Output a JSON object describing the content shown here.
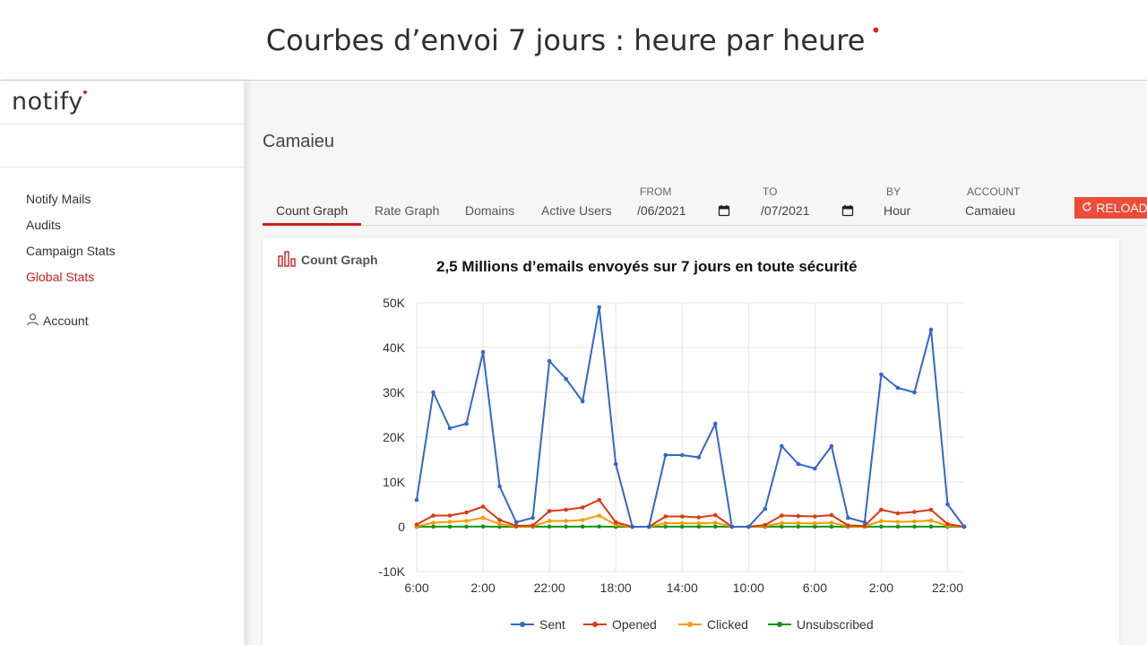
{
  "slide": {
    "title": "Courbes d’envoi 7 jours : heure par heure",
    "dot": "•"
  },
  "brand": {
    "name": "notify",
    "dot": "•",
    "accent": "#e2231a"
  },
  "sidebar": {
    "items": [
      {
        "label": "Notify Mails",
        "active": false
      },
      {
        "label": "Audits",
        "active": false
      },
      {
        "label": "Campaign Stats",
        "active": false
      },
      {
        "label": "Global Stats",
        "active": true
      }
    ],
    "account_label": "Account"
  },
  "main": {
    "heading": "Camaieu",
    "tabs": [
      {
        "label": "Count Graph",
        "active": true
      },
      {
        "label": "Rate Graph",
        "active": false
      },
      {
        "label": "Domains",
        "active": false
      },
      {
        "label": "Active Users",
        "active": false
      }
    ],
    "from": {
      "label": "FROM",
      "value": "/06/2021"
    },
    "to": {
      "label": "TO",
      "value": "/07/2021"
    },
    "by": {
      "label": "BY",
      "value": "Hour"
    },
    "account": {
      "label": "ACCOUNT",
      "value": "Camaieu"
    },
    "reload_label": "RELOAD",
    "reload_color": "#ee4b3b"
  },
  "card": {
    "title": "Count Graph",
    "headline": "2,5 Millions d’emails envoyés sur 7 jours en toute sécurité"
  },
  "chart_data": {
    "type": "line",
    "x": [
      0,
      5,
      10,
      15,
      20,
      25,
      30,
      35,
      40,
      45,
      50,
      55,
      60,
      65,
      70,
      75,
      80,
      85,
      90,
      95,
      100,
      105,
      110,
      115,
      120,
      125,
      130,
      135,
      140,
      145,
      150,
      155,
      160,
      165
    ],
    "x_tick_labels": [
      "6:00",
      "2:00",
      "22:00",
      "18:00",
      "14:00",
      "10:00",
      "6:00",
      "2:00",
      "22:00"
    ],
    "x_tick_positions": [
      0,
      20,
      40,
      60,
      80,
      100,
      120,
      140,
      160
    ],
    "ylim": [
      -10000,
      50000
    ],
    "y_tick_labels": [
      "50K",
      "40K",
      "30K",
      "20K",
      "10K",
      "0",
      "-10K"
    ],
    "y_tick_values": [
      50000,
      40000,
      30000,
      20000,
      10000,
      0,
      -10000
    ],
    "grid": true,
    "legend_position": "bottom",
    "series": [
      {
        "name": "Sent",
        "color": "#3366cc",
        "values": [
          6000,
          30000,
          22000,
          23000,
          39000,
          9000,
          1000,
          2000,
          37000,
          33000,
          28000,
          49000,
          14000,
          0,
          0,
          16000,
          16000,
          15500,
          23000,
          0,
          0,
          4000,
          18000,
          14000,
          13000,
          18000,
          2000,
          1000,
          34000,
          31000,
          30000,
          44000,
          5000,
          0
        ]
      },
      {
        "name": "Opened",
        "color": "#dc3912",
        "values": [
          500,
          2500,
          2500,
          3200,
          4500,
          1500,
          200,
          300,
          3500,
          3800,
          4300,
          6000,
          1000,
          0,
          0,
          2300,
          2300,
          2100,
          2600,
          0,
          0,
          400,
          2500,
          2400,
          2300,
          2600,
          300,
          200,
          3800,
          3000,
          3300,
          3800,
          600,
          0
        ]
      },
      {
        "name": "Clicked",
        "color": "#ff9900",
        "values": [
          100,
          900,
          1100,
          1300,
          2000,
          600,
          50,
          100,
          1300,
          1300,
          1500,
          2500,
          400,
          0,
          0,
          800,
          800,
          750,
          900,
          0,
          0,
          150,
          800,
          800,
          750,
          900,
          100,
          80,
          1300,
          1100,
          1200,
          1400,
          200,
          0
        ]
      },
      {
        "name": "Unsubscribed",
        "color": "#109618",
        "values": [
          0,
          20,
          20,
          30,
          40,
          10,
          0,
          0,
          30,
          30,
          30,
          50,
          10,
          0,
          0,
          20,
          20,
          20,
          20,
          0,
          0,
          0,
          20,
          20,
          20,
          20,
          0,
          0,
          30,
          30,
          30,
          30,
          10,
          0
        ]
      }
    ]
  }
}
